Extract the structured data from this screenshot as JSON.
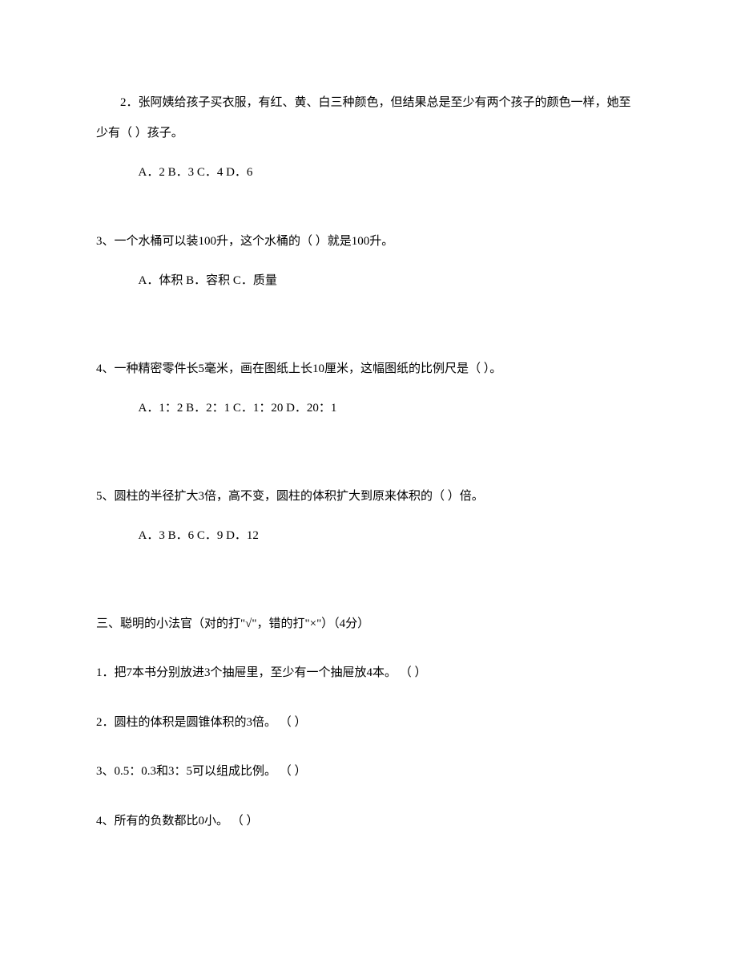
{
  "q2": {
    "text": "2．张阿姨给孩子买衣服，有红、黄、白三种颜色，但结果总是至少有两个孩子的颜色一样，她至少有（ ）孩子。",
    "options": "A．2 B．3 C．4 D．6"
  },
  "q3": {
    "text": "3、一个水桶可以装100升，这个水桶的（ ）就是100升。",
    "options": "A．体积 B．容积 C．质量"
  },
  "q4": {
    "text": "4、一种精密零件长5毫米，画在图纸上长10厘米，这幅图纸的比例尺是（ ）。",
    "options": "A．1：2 B．2：1 C．1：20 D．20：1"
  },
  "q5": {
    "text": "5、圆柱的半径扩大3倍，高不变，圆柱的体积扩大到原来体积的（ ）倍。",
    "options": "A．3 B．6 C．9 D．12"
  },
  "section3": {
    "header": "三、聪明的小法官（对的打\"√\"，错的打\"×\"）（4分）",
    "j1": "1．把7本书分别放进3个抽屉里，至少有一个抽屉放4本。 （ ）",
    "j2": "2．圆柱的体积是圆锥体积的3倍。 （ ）",
    "j3": "3、0.5：0.3和3：5可以组成比例。 （ ）",
    "j4": "4、所有的负数都比0小。 （ ）"
  }
}
